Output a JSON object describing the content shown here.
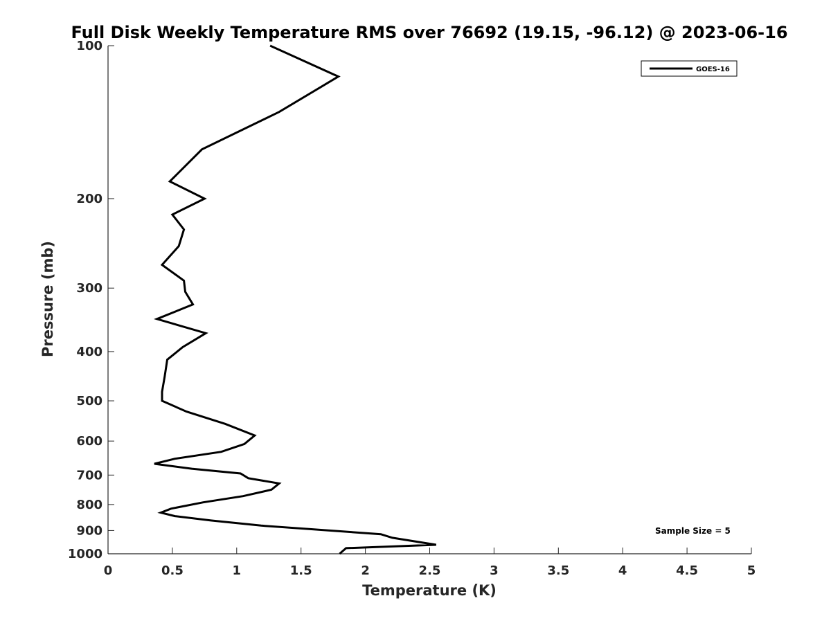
{
  "chart_data": {
    "type": "line",
    "title": "Full Disk Weekly Temperature RMS over 76692 (19.15, -96.12) @ 2023-06-16",
    "xlabel": "Temperature (K)",
    "ylabel": "Pressure (mb)",
    "xlim": [
      0,
      5
    ],
    "ylim": [
      1000,
      100
    ],
    "yscale": "log",
    "y_reversed": true,
    "x_ticks": [
      "0",
      "0.5",
      "1",
      "1.5",
      "2",
      "2.5",
      "3",
      "3.5",
      "4",
      "4.5",
      "5"
    ],
    "y_ticks": [
      "100",
      "200",
      "300",
      "400",
      "500",
      "600",
      "700",
      "800",
      "900",
      "1000"
    ],
    "grid": false,
    "legend_position": "top-right",
    "series": [
      {
        "name": "GOES-16",
        "color": "#000000",
        "x": [
          1.26,
          1.79,
          1.33,
          0.73,
          0.48,
          0.75,
          0.5,
          0.59,
          0.55,
          0.42,
          0.59,
          0.6,
          0.66,
          0.38,
          0.76,
          0.58,
          0.46,
          0.44,
          0.42,
          0.42,
          0.61,
          0.91,
          1.14,
          1.06,
          0.88,
          0.52,
          0.36,
          0.65,
          1.03,
          1.09,
          1.33,
          1.27,
          1.05,
          0.74,
          0.49,
          0.41,
          0.52,
          0.8,
          1.19,
          2.12,
          2.21,
          2.55,
          1.85,
          1.8
        ],
        "y": [
          100,
          115,
          135,
          160,
          185,
          200,
          215,
          230,
          248,
          270,
          290,
          305,
          323,
          345,
          368,
          392,
          415,
          448,
          480,
          500,
          525,
          555,
          585,
          608,
          630,
          650,
          665,
          680,
          695,
          710,
          727,
          748,
          770,
          792,
          815,
          830,
          843,
          860,
          880,
          915,
          930,
          960,
          975,
          1000
        ]
      }
    ],
    "annotation": "Sample Size = 5"
  }
}
